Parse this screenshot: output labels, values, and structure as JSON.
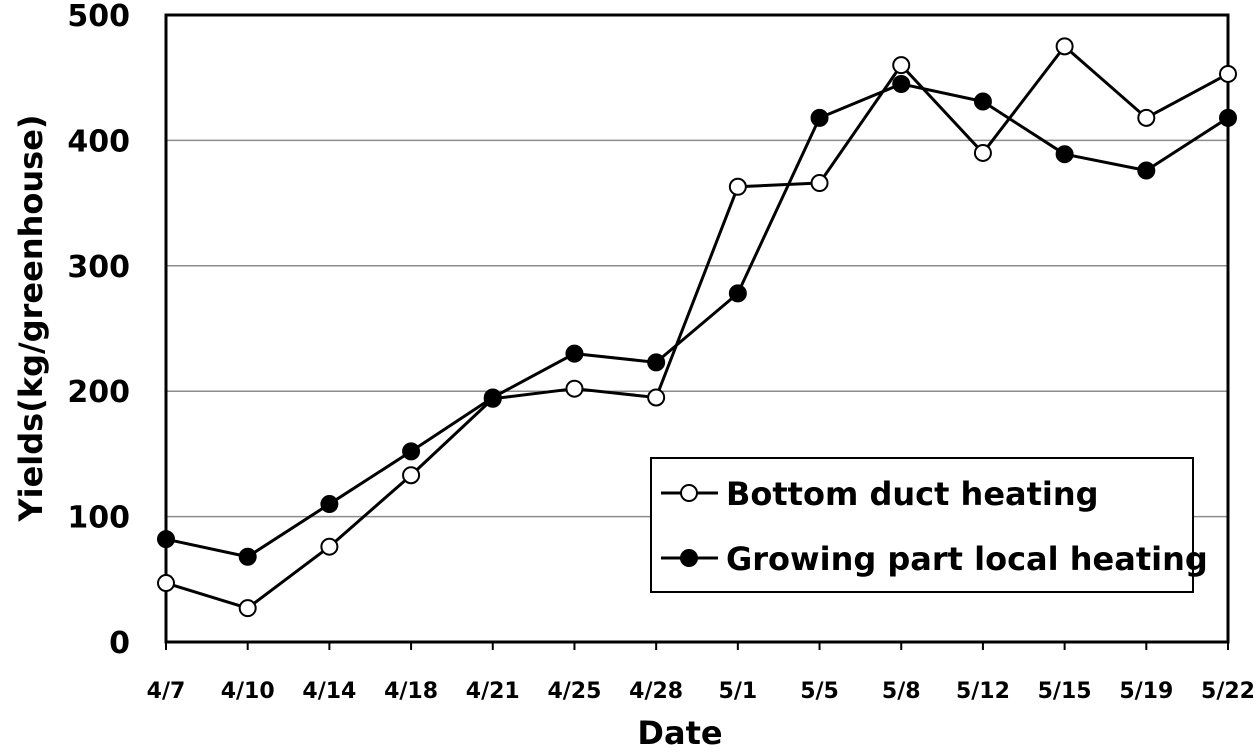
{
  "chart_data": {
    "type": "line",
    "title": "",
    "xlabel": "Date",
    "ylabel": "Yields(kg/greenhouse)",
    "ylim": [
      0,
      500
    ],
    "yticks": [
      0,
      100,
      200,
      300,
      400,
      500
    ],
    "ytick_labels": [
      "0",
      "100",
      "200",
      "300",
      "400",
      "500"
    ],
    "grid": "horizontal",
    "legend_position": "bottom-right",
    "categories": [
      "4/7",
      "4/10",
      "4/14",
      "4/18",
      "4/21",
      "4/25",
      "4/28",
      "5/1",
      "5/5",
      "5/8",
      "5/12",
      "5/15",
      "5/19",
      "5/22"
    ],
    "series": [
      {
        "name": "Bottom duct heating",
        "marker": "open-circle",
        "color": "#000000",
        "values": [
          47,
          27,
          76,
          133,
          194,
          202,
          195,
          363,
          366,
          460,
          390,
          475,
          418,
          453
        ]
      },
      {
        "name": "Growing part local heating",
        "marker": "filled-circle",
        "color": "#000000",
        "values": [
          82,
          68,
          110,
          152,
          195,
          230,
          223,
          278,
          418,
          445,
          431,
          389,
          376,
          418
        ]
      }
    ]
  }
}
